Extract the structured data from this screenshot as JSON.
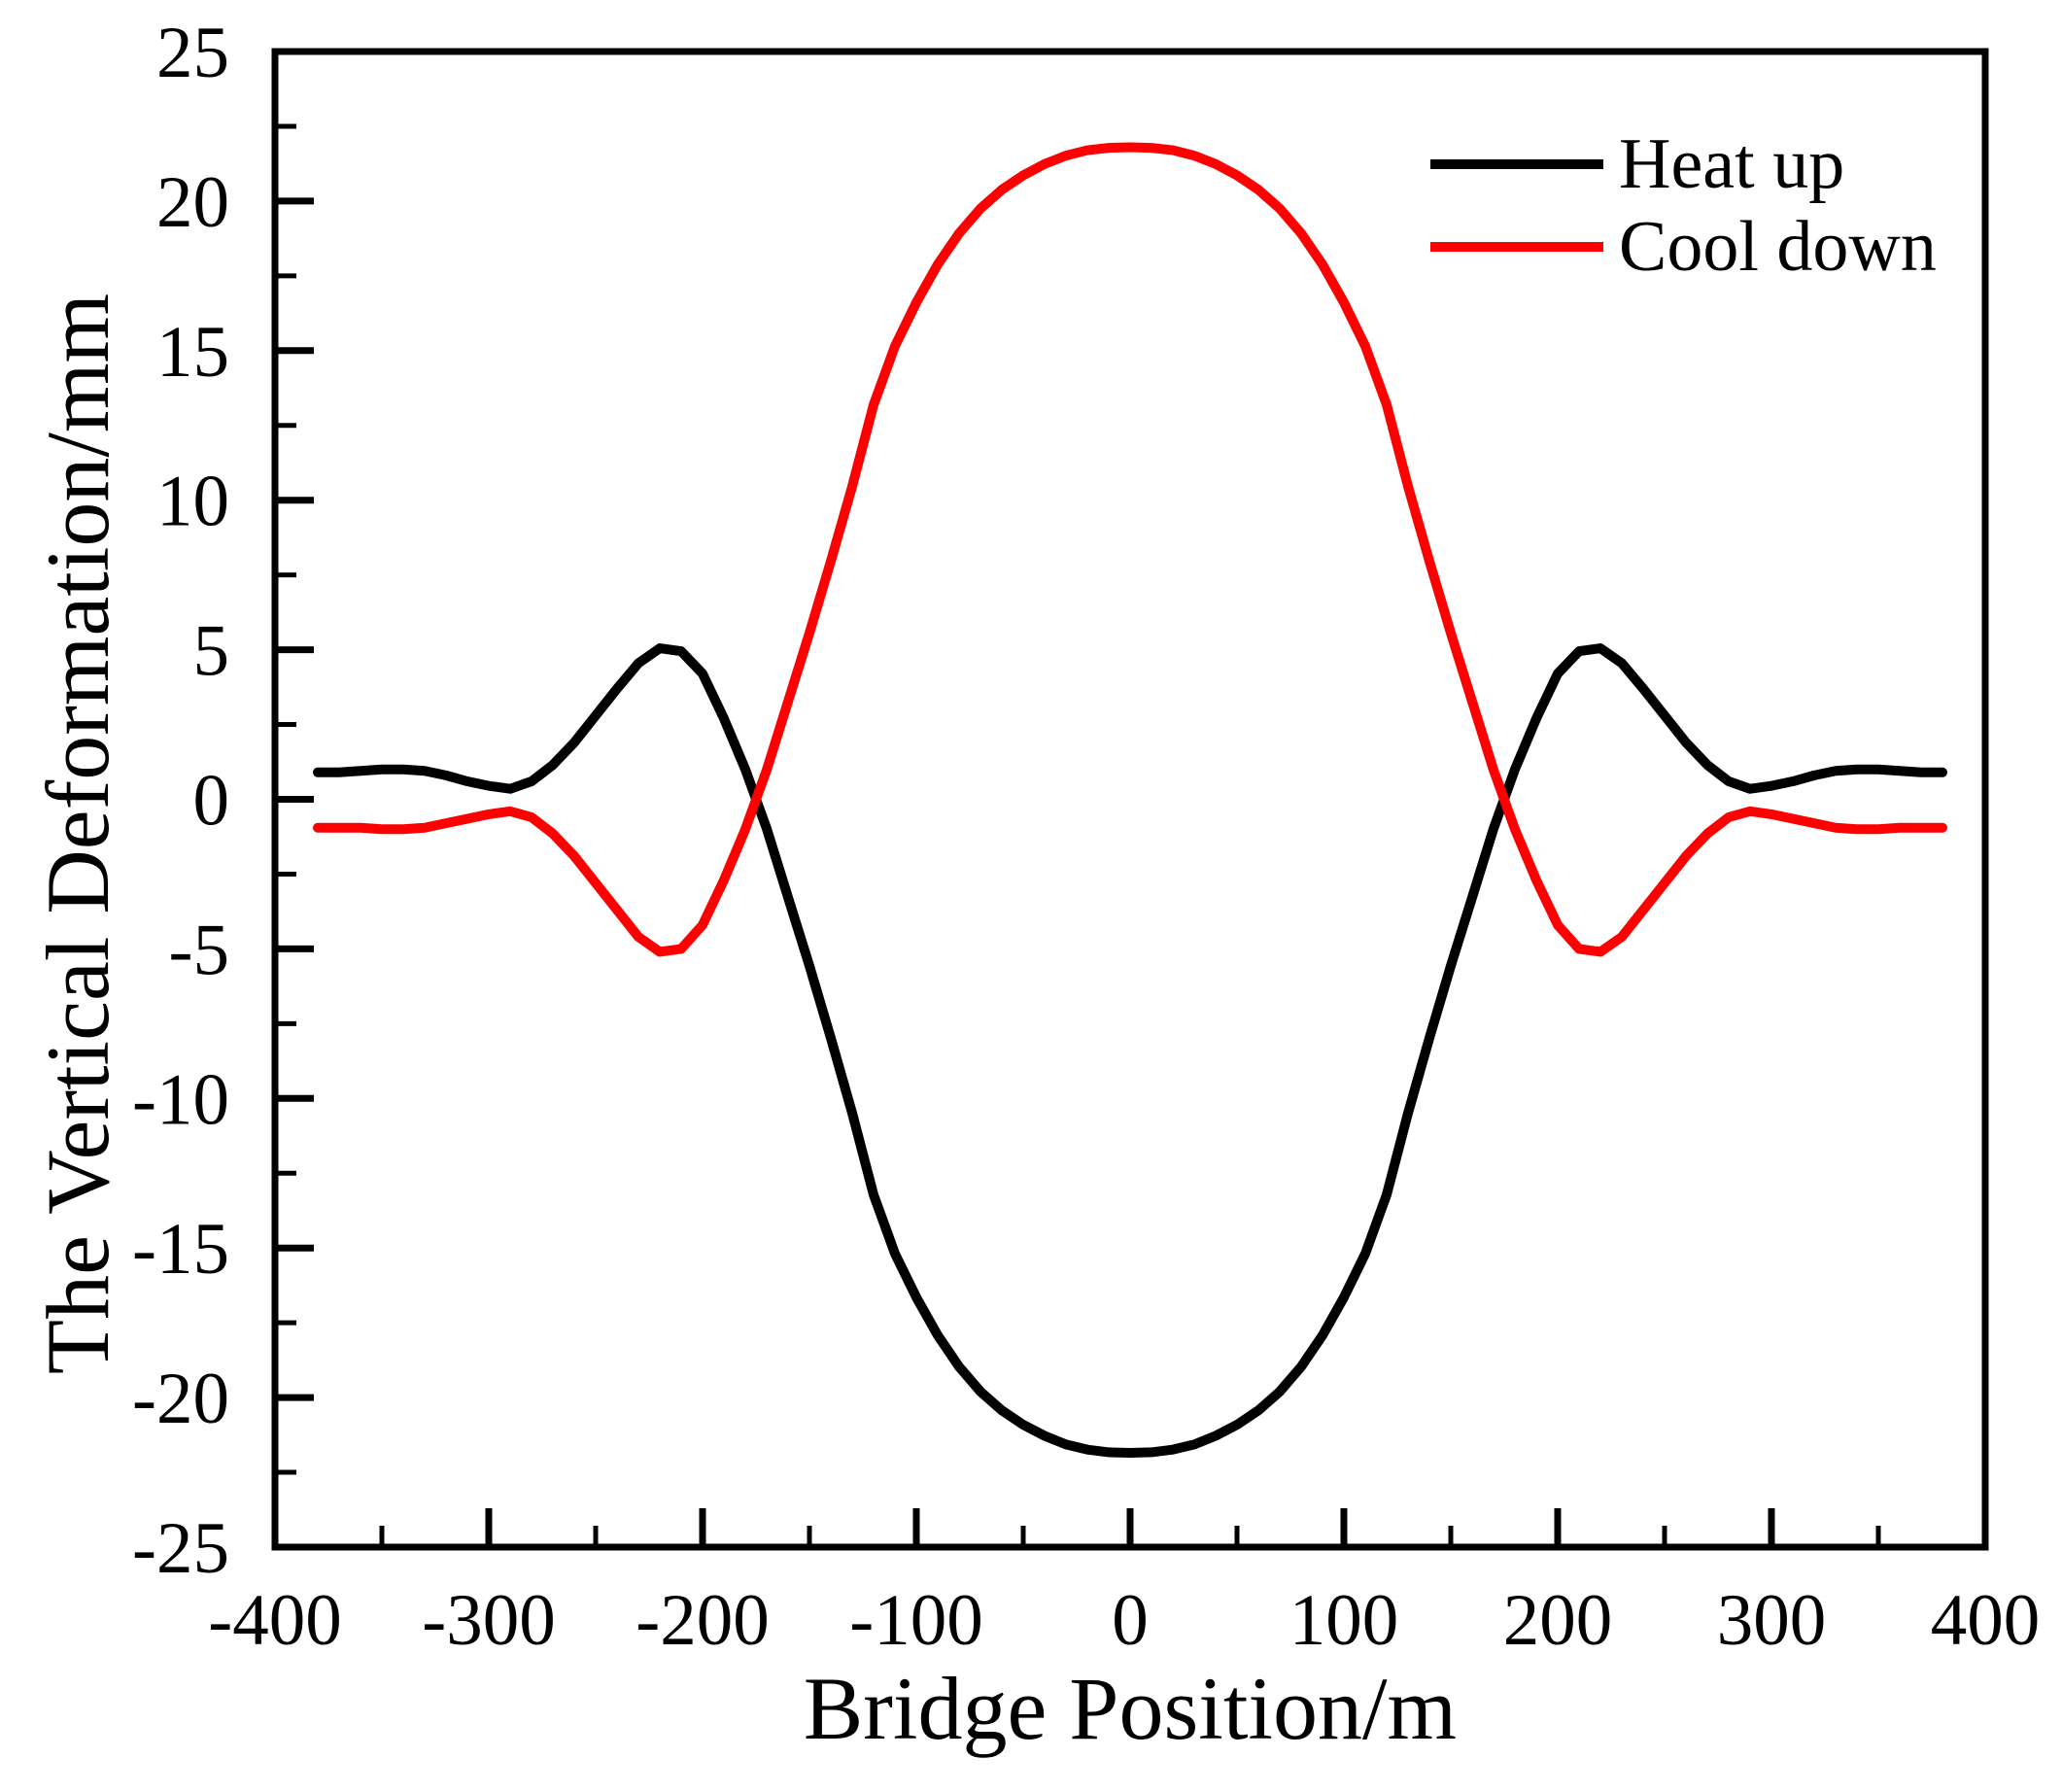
{
  "figure": {
    "background": "#ffffff",
    "axis_color": "#000000"
  },
  "chart_data": {
    "type": "line",
    "title": "",
    "xlabel": "Bridge Position/m",
    "ylabel": "The Vertical Deformation/mm",
    "xlim": [
      -400,
      400
    ],
    "ylim": [
      -25,
      25
    ],
    "grid": false,
    "legend_position": "top-right-inside",
    "x_major_ticks": [
      -400,
      -300,
      -200,
      -100,
      0,
      100,
      200,
      300,
      400
    ],
    "x_minor_ticks": [
      -350,
      -250,
      -150,
      -50,
      50,
      150,
      250,
      350
    ],
    "y_major_ticks": [
      -25,
      -20,
      -15,
      -10,
      -5,
      0,
      5,
      10,
      15,
      20,
      25
    ],
    "y_minor_ticks": [
      -22.5,
      -17.5,
      -12.5,
      -7.5,
      -2.5,
      2.5,
      7.5,
      12.5,
      17.5,
      22.5
    ],
    "x": [
      -380,
      -370,
      -360,
      -350,
      -340,
      -330,
      -320,
      -310,
      -300,
      -290,
      -280,
      -270,
      -260,
      -250,
      -240,
      -230,
      -220,
      -210,
      -200,
      -190,
      -180,
      -170,
      -160,
      -150,
      -140,
      -130,
      -120,
      -110,
      -100,
      -90,
      -80,
      -70,
      -60,
      -50,
      -40,
      -30,
      -20,
      -10,
      0,
      10,
      20,
      30,
      40,
      50,
      60,
      70,
      80,
      90,
      100,
      110,
      120,
      130,
      140,
      150,
      160,
      170,
      180,
      190,
      200,
      210,
      220,
      230,
      240,
      250,
      260,
      270,
      280,
      290,
      300,
      310,
      320,
      330,
      340,
      350,
      360,
      370,
      380
    ],
    "series": [
      {
        "name": "Heat up",
        "color": "#000000",
        "values": [
          0.9,
          0.9,
          0.95,
          1.0,
          1.0,
          0.95,
          0.8,
          0.6,
          0.45,
          0.35,
          0.6,
          1.15,
          1.9,
          2.8,
          3.7,
          4.55,
          5.05,
          4.95,
          4.2,
          2.7,
          1.0,
          -0.98,
          -3.28,
          -5.57,
          -7.98,
          -10.49,
          -13.22,
          -15.19,
          -16.65,
          -17.92,
          -18.97,
          -19.8,
          -20.43,
          -20.91,
          -21.28,
          -21.57,
          -21.74,
          -21.83,
          -21.85,
          -21.83,
          -21.74,
          -21.57,
          -21.28,
          -20.91,
          -20.43,
          -19.8,
          -18.97,
          -17.92,
          -16.65,
          -15.19,
          -13.22,
          -10.49,
          -7.98,
          -5.57,
          -3.28,
          -0.98,
          1.0,
          2.7,
          4.2,
          4.95,
          5.05,
          4.55,
          3.7,
          2.8,
          1.9,
          1.15,
          0.6,
          0.35,
          0.45,
          0.6,
          0.8,
          0.95,
          1.0,
          1.0,
          0.95,
          0.9,
          0.9
        ]
      },
      {
        "name": "Cool down",
        "color": "#ff0000",
        "values": [
          -0.95,
          -0.95,
          -0.95,
          -1.0,
          -1.0,
          -0.95,
          -0.8,
          -0.65,
          -0.5,
          -0.4,
          -0.6,
          -1.15,
          -1.9,
          -2.8,
          -3.7,
          -4.6,
          -5.1,
          -5.0,
          -4.2,
          -2.7,
          -1.0,
          0.98,
          3.27,
          5.56,
          7.96,
          10.46,
          13.19,
          15.15,
          16.61,
          17.88,
          18.92,
          19.75,
          20.38,
          20.86,
          21.24,
          21.52,
          21.7,
          21.78,
          21.8,
          21.78,
          21.7,
          21.52,
          21.24,
          20.86,
          20.38,
          19.75,
          18.92,
          17.88,
          16.61,
          15.15,
          13.19,
          10.46,
          7.96,
          5.56,
          3.27,
          0.98,
          -1.0,
          -2.7,
          -4.2,
          -5.0,
          -5.1,
          -4.6,
          -3.7,
          -2.8,
          -1.9,
          -1.15,
          -0.6,
          -0.4,
          -0.5,
          -0.65,
          -0.8,
          -0.95,
          -1.0,
          -1.0,
          -0.95,
          -0.95,
          -0.95
        ]
      }
    ]
  }
}
